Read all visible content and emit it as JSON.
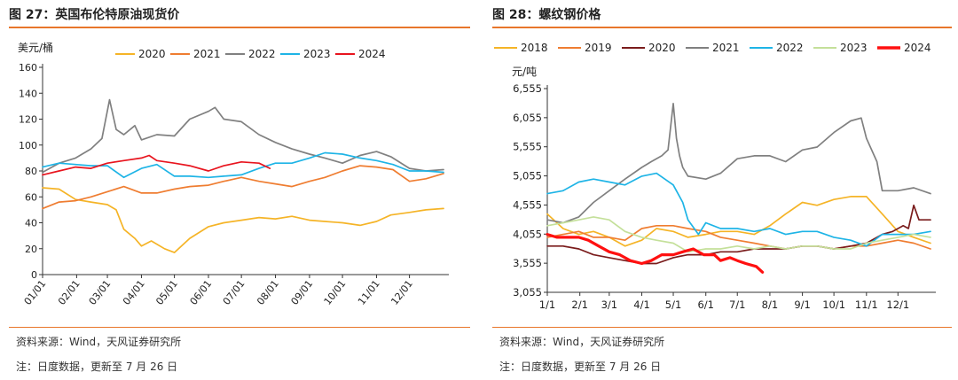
{
  "left": {
    "title": "图 27：英国布伦特原油现货价",
    "source": "资料来源：Wind，天风证券研究所",
    "note": "注：日度数据，更新至 7 月 26 日"
  },
  "right": {
    "title": "图 28：螺纹钢价格",
    "source": "资料来源：Wind，天风证券研究所",
    "note": "注：日度数据，更新至 7 月 26 日"
  },
  "chart_data": [
    {
      "type": "line",
      "title": "图 27：英国布伦特原油现货价",
      "ylabel": "美元/桶",
      "xlabel": "",
      "ylim": [
        0,
        160
      ],
      "yticks": [
        0,
        20,
        40,
        60,
        80,
        100,
        120,
        140,
        160
      ],
      "categories": [
        "01/01",
        "02/01",
        "03/01",
        "04/01",
        "05/01",
        "06/01",
        "07/01",
        "08/01",
        "09/01",
        "10/01",
        "11/01",
        "12/01"
      ],
      "legend_position": "top",
      "grid": false,
      "series": [
        {
          "name": "2020",
          "color": "#f5b427",
          "x": [
            1,
            16,
            31,
            45,
            60,
            68,
            75,
            85,
            91,
            100,
            112,
            121,
            135,
            152,
            166,
            182,
            198,
            213,
            228,
            244,
            258,
            274,
            290,
            305,
            318,
            335,
            350,
            366
          ],
          "values": [
            67,
            66,
            58,
            56,
            54,
            50,
            35,
            28,
            22,
            26,
            20,
            17,
            28,
            37,
            40,
            42,
            44,
            43,
            45,
            42,
            41,
            40,
            38,
            41,
            46,
            48,
            50,
            51
          ]
        },
        {
          "name": "2021",
          "color": "#ef7d31",
          "x": [
            1,
            16,
            31,
            45,
            60,
            75,
            91,
            105,
            121,
            135,
            152,
            166,
            182,
            198,
            213,
            228,
            244,
            258,
            274,
            290,
            305,
            320,
            335,
            350,
            366
          ],
          "values": [
            51,
            56,
            57,
            60,
            64,
            68,
            63,
            63,
            66,
            68,
            69,
            72,
            75,
            72,
            70,
            68,
            72,
            75,
            80,
            84,
            83,
            81,
            72,
            74,
            78
          ]
        },
        {
          "name": "2022",
          "color": "#808080",
          "x": [
            1,
            16,
            31,
            45,
            55,
            62,
            68,
            75,
            85,
            91,
            105,
            121,
            135,
            152,
            158,
            166,
            182,
            198,
            213,
            228,
            244,
            258,
            274,
            290,
            305,
            318,
            335,
            350,
            366
          ],
          "values": [
            79,
            86,
            90,
            97,
            105,
            135,
            112,
            108,
            115,
            104,
            108,
            107,
            120,
            126,
            129,
            120,
            118,
            108,
            102,
            97,
            93,
            90,
            86,
            92,
            95,
            91,
            82,
            80,
            81
          ]
        },
        {
          "name": "2023",
          "color": "#1eb4e6",
          "x": [
            1,
            16,
            31,
            45,
            60,
            75,
            91,
            105,
            121,
            135,
            152,
            166,
            182,
            198,
            213,
            228,
            244,
            258,
            274,
            290,
            305,
            320,
            335,
            350,
            366
          ],
          "values": [
            83,
            86,
            85,
            84,
            84,
            75,
            82,
            85,
            76,
            76,
            75,
            76,
            77,
            82,
            86,
            86,
            90,
            94,
            93,
            90,
            88,
            85,
            80,
            80,
            79
          ]
        },
        {
          "name": "2024",
          "color": "#e8141e",
          "x": [
            1,
            16,
            31,
            45,
            60,
            75,
            91,
            98,
            105,
            121,
            135,
            152,
            166,
            182,
            198,
            208
          ],
          "values": [
            77,
            80,
            83,
            82,
            86,
            88,
            90,
            92,
            88,
            86,
            84,
            80,
            84,
            87,
            86,
            82
          ]
        }
      ]
    },
    {
      "type": "line",
      "title": "图 28：螺纹钢价格",
      "ylabel": "元/吨",
      "xlabel": "",
      "ylim": [
        3055,
        6555
      ],
      "yticks": [
        3055,
        3555,
        4055,
        4555,
        5055,
        5555,
        6055,
        6555
      ],
      "categories": [
        "1/1",
        "2/1",
        "3/1",
        "4/1",
        "5/1",
        "6/1",
        "7/1",
        "8/1",
        "9/1",
        "10/1",
        "11/1",
        "12/1"
      ],
      "legend_position": "top",
      "grid": false,
      "series": [
        {
          "name": "2018",
          "color": "#f5b427",
          "x": [
            1,
            16,
            31,
            45,
            60,
            75,
            91,
            105,
            121,
            135,
            152,
            166,
            182,
            198,
            213,
            228,
            244,
            258,
            274,
            290,
            305,
            320,
            335,
            350,
            366
          ],
          "values": [
            4400,
            4150,
            4050,
            4100,
            4000,
            3850,
            3950,
            4150,
            4100,
            4000,
            4050,
            4100,
            4100,
            4050,
            4200,
            4400,
            4600,
            4550,
            4650,
            4700,
            4700,
            4400,
            4100,
            4000,
            3900
          ]
        },
        {
          "name": "2019",
          "color": "#ef7d31",
          "x": [
            1,
            16,
            31,
            45,
            60,
            75,
            91,
            105,
            121,
            135,
            152,
            166,
            182,
            198,
            213,
            228,
            244,
            258,
            274,
            290,
            305,
            320,
            335,
            350,
            366
          ],
          "values": [
            4000,
            4050,
            4100,
            4000,
            4000,
            3950,
            4150,
            4200,
            4200,
            4150,
            4100,
            4000,
            3950,
            3900,
            3850,
            3800,
            3850,
            3850,
            3800,
            3850,
            3850,
            3900,
            3950,
            3900,
            3800
          ]
        },
        {
          "name": "2020",
          "color": "#7a1c1c",
          "x": [
            1,
            16,
            31,
            45,
            60,
            75,
            91,
            105,
            121,
            135,
            152,
            166,
            182,
            198,
            213,
            228,
            244,
            258,
            274,
            290,
            305,
            320,
            330,
            340,
            345,
            350,
            355,
            366
          ],
          "values": [
            3850,
            3850,
            3800,
            3700,
            3650,
            3600,
            3550,
            3550,
            3650,
            3700,
            3700,
            3750,
            3750,
            3800,
            3800,
            3800,
            3850,
            3850,
            3800,
            3850,
            3900,
            4050,
            4100,
            4200,
            4150,
            4550,
            4300,
            4300
          ]
        },
        {
          "name": "2021",
          "color": "#808080",
          "x": [
            1,
            16,
            31,
            45,
            60,
            75,
            91,
            100,
            110,
            116,
            121,
            124,
            127,
            130,
            135,
            152,
            166,
            182,
            198,
            213,
            228,
            244,
            258,
            274,
            290,
            300,
            305,
            315,
            320,
            335,
            350,
            366
          ],
          "values": [
            4300,
            4250,
            4350,
            4600,
            4800,
            5000,
            5200,
            5300,
            5400,
            5500,
            6300,
            5700,
            5400,
            5200,
            5050,
            5000,
            5100,
            5350,
            5400,
            5400,
            5300,
            5500,
            5550,
            5800,
            6000,
            6050,
            5700,
            5300,
            4800,
            4800,
            4850,
            4750
          ]
        },
        {
          "name": "2022",
          "color": "#1eb4e6",
          "x": [
            1,
            16,
            31,
            45,
            60,
            75,
            91,
            105,
            121,
            130,
            135,
            145,
            152,
            166,
            182,
            198,
            213,
            228,
            244,
            258,
            274,
            290,
            305,
            320,
            335,
            350,
            366
          ],
          "values": [
            4750,
            4800,
            4950,
            5000,
            4950,
            4900,
            5050,
            5100,
            4900,
            4600,
            4300,
            4050,
            4250,
            4150,
            4150,
            4100,
            4150,
            4050,
            4100,
            4100,
            4000,
            3950,
            3850,
            4050,
            4050,
            4050,
            4100
          ]
        },
        {
          "name": "2023",
          "color": "#c4e09a",
          "x": [
            1,
            16,
            31,
            45,
            60,
            75,
            91,
            105,
            121,
            135,
            152,
            166,
            182,
            198,
            213,
            228,
            244,
            258,
            274,
            290,
            305,
            320,
            335,
            350,
            366
          ],
          "values": [
            4200,
            4250,
            4300,
            4350,
            4300,
            4100,
            4000,
            3950,
            3900,
            3750,
            3800,
            3800,
            3850,
            3800,
            3850,
            3800,
            3850,
            3850,
            3800,
            3800,
            3900,
            3950,
            4000,
            4050,
            4000
          ]
        },
        {
          "name": "2024",
          "color": "#ff1010",
          "x": [
            1,
            10,
            20,
            31,
            40,
            50,
            60,
            70,
            80,
            91,
            100,
            110,
            121,
            130,
            140,
            150,
            160,
            166,
            175,
            182,
            190,
            200,
            206
          ],
          "values": [
            4050,
            4000,
            4000,
            4000,
            3950,
            3850,
            3750,
            3700,
            3600,
            3550,
            3600,
            3700,
            3700,
            3750,
            3800,
            3700,
            3700,
            3600,
            3650,
            3600,
            3550,
            3500,
            3400
          ]
        }
      ]
    }
  ]
}
